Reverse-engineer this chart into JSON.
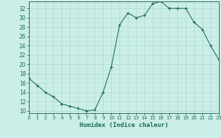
{
  "x": [
    0,
    1,
    2,
    3,
    4,
    5,
    6,
    7,
    8,
    9,
    10,
    11,
    12,
    13,
    14,
    15,
    16,
    17,
    18,
    19,
    20,
    21,
    22,
    23
  ],
  "y": [
    17.0,
    15.5,
    14.0,
    13.0,
    11.5,
    11.0,
    10.5,
    10.0,
    10.2,
    14.0,
    19.5,
    28.5,
    31.0,
    30.0,
    30.5,
    33.0,
    33.5,
    32.0,
    32.0,
    32.0,
    29.0,
    27.5,
    24.0,
    21.0
  ],
  "xlabel": "Humidex (Indice chaleur)",
  "xlim": [
    0,
    23
  ],
  "ylim": [
    9.5,
    33.5
  ],
  "yticks": [
    10,
    12,
    14,
    16,
    18,
    20,
    22,
    24,
    26,
    28,
    30,
    32
  ],
  "xticks": [
    0,
    1,
    2,
    3,
    4,
    5,
    6,
    7,
    8,
    9,
    10,
    11,
    12,
    13,
    14,
    15,
    16,
    17,
    18,
    19,
    20,
    21,
    22,
    23
  ],
  "line_color": "#1a6b5a",
  "marker": "+",
  "bg_color": "#cceee8",
  "grid_major_color": "#aad8d0",
  "grid_minor_color": "#bbddd8",
  "fig_bg": "#cceee8",
  "spine_color": "#336655"
}
